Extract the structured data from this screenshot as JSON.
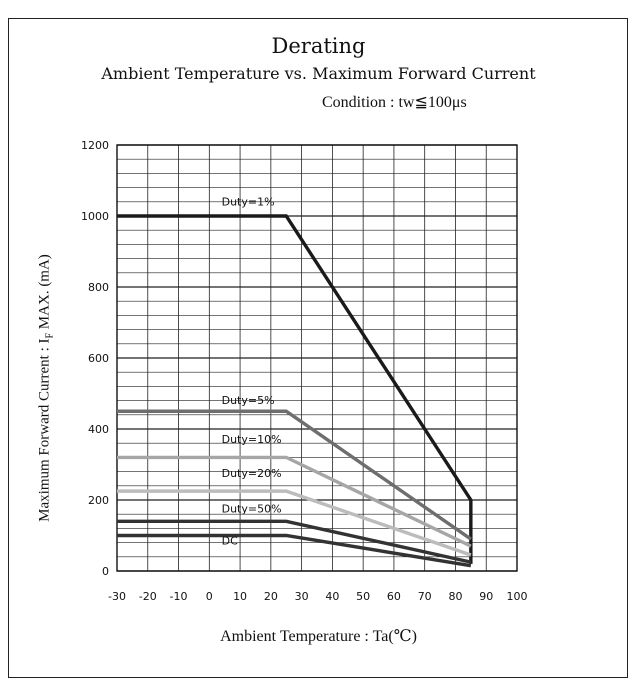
{
  "chart_data": {
    "type": "line",
    "title": "Derating",
    "subtitle": "Ambient Temperature vs. Maximum Forward Current",
    "condition": "Condition : tw≦100μs",
    "xlabel": "Ambient Temperature : Ta(℃)",
    "ylabel_pre": "Maximum Forward Current : I",
    "ylabel_sub": "F",
    "ylabel_post": " MAX. (mA)",
    "xlim": [
      -30,
      100
    ],
    "ylim": [
      0,
      1200
    ],
    "x_ticks": [
      "-30",
      "-20",
      "-10",
      "0",
      "10",
      "20",
      "30",
      "40",
      "50",
      "60",
      "70",
      "80",
      "90",
      "100"
    ],
    "y_ticks": [
      "0",
      "200",
      "400",
      "600",
      "800",
      "1000",
      "1200"
    ],
    "grid": true,
    "series": [
      {
        "name": "Duty=1%",
        "color": "#1a1a1a",
        "points": [
          [
            -30,
            1000
          ],
          [
            25,
            1000
          ],
          [
            85,
            200
          ],
          [
            85,
            20
          ]
        ]
      },
      {
        "name": "Duty=5%",
        "color": "#6e6e6e",
        "points": [
          [
            -30,
            450
          ],
          [
            25,
            450
          ],
          [
            85,
            90
          ]
        ]
      },
      {
        "name": "Duty=10%",
        "color": "#a6a6a6",
        "points": [
          [
            -30,
            320
          ],
          [
            25,
            320
          ],
          [
            85,
            70
          ]
        ]
      },
      {
        "name": "Duty=20%",
        "color": "#bcbcbc",
        "points": [
          [
            -30,
            225
          ],
          [
            25,
            225
          ],
          [
            85,
            45
          ]
        ]
      },
      {
        "name": "Duty=50%",
        "color": "#333333",
        "points": [
          [
            -30,
            140
          ],
          [
            25,
            140
          ],
          [
            85,
            25
          ]
        ]
      },
      {
        "name": "DC",
        "color": "#333333",
        "points": [
          [
            -30,
            100
          ],
          [
            25,
            100
          ],
          [
            85,
            15
          ]
        ]
      }
    ],
    "annotations": [
      {
        "text": "Duty=1%",
        "x": 4,
        "y": 1030
      },
      {
        "text": "Duty=5%",
        "x": 4,
        "y": 470
      },
      {
        "text": "Duty=10%",
        "x": 4,
        "y": 360
      },
      {
        "text": "Duty=20%",
        "x": 4,
        "y": 265
      },
      {
        "text": "Duty=50%",
        "x": 4,
        "y": 165
      },
      {
        "text": "DC",
        "x": 4,
        "y": 75
      }
    ]
  }
}
